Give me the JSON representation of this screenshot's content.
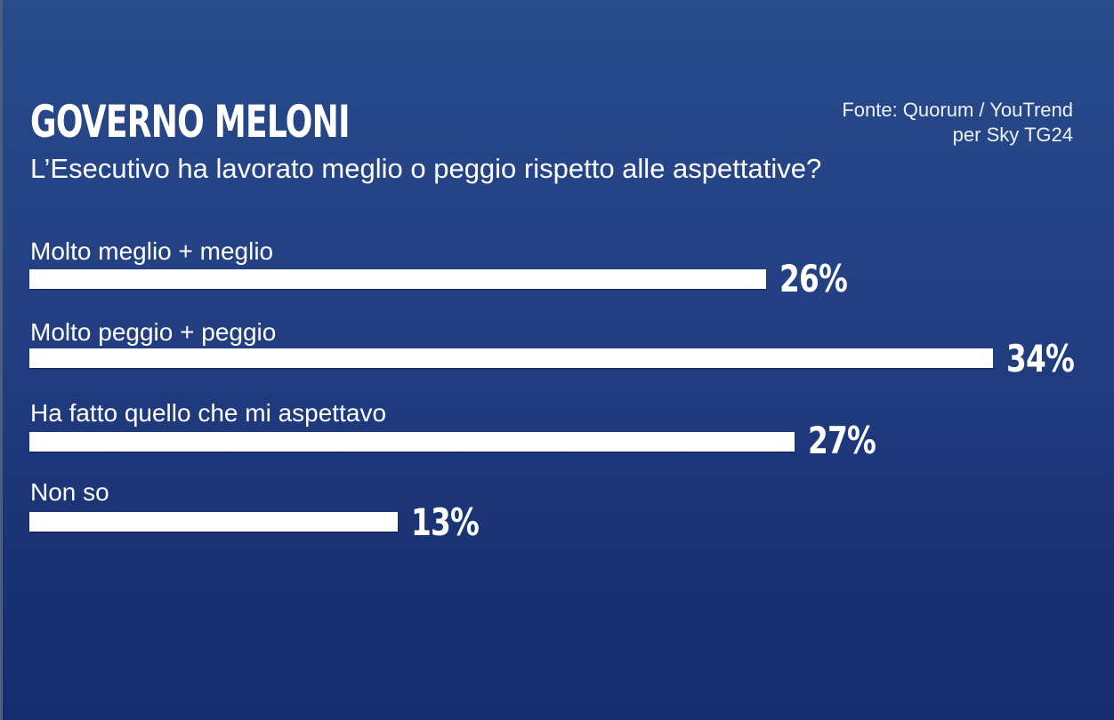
{
  "header": {
    "title": "GOVERNO MELONI",
    "subtitle": "L’Esecutivo ha lavorato meglio o peggio rispetto alle aspettative?",
    "source_line1": "Fonte: Quorum / YouTrend",
    "source_line2": "per Sky TG24"
  },
  "rows": [
    {
      "label": "Molto meglio + meglio",
      "value": 26,
      "value_label": "26%"
    },
    {
      "label": "Molto peggio + peggio",
      "value": 34,
      "value_label": "34%"
    },
    {
      "label": "Ha fatto quello che mi aspettavo",
      "value": 27,
      "value_label": "27%"
    },
    {
      "label": "Non so",
      "value": 13,
      "value_label": "13%"
    }
  ],
  "colors": {
    "background_top": "#284b8a",
    "background_bottom": "#152d6f",
    "bar": "#ffffff",
    "text": "#ffffff"
  },
  "chart_data": {
    "type": "bar",
    "orientation": "horizontal",
    "title": "GOVERNO MELONI",
    "subtitle": "L’Esecutivo ha lavorato meglio o peggio rispetto alle aspettative?",
    "source": "Fonte: Quorum / YouTrend per Sky TG24",
    "categories": [
      "Molto meglio + meglio",
      "Molto peggio + peggio",
      "Ha fatto quello che mi aspettavo",
      "Non so"
    ],
    "values": [
      26,
      34,
      27,
      13
    ],
    "unit": "%",
    "data_labels": [
      "26%",
      "34%",
      "27%",
      "13%"
    ],
    "xlabel": "",
    "ylabel": "",
    "grid": false,
    "legend": null
  }
}
